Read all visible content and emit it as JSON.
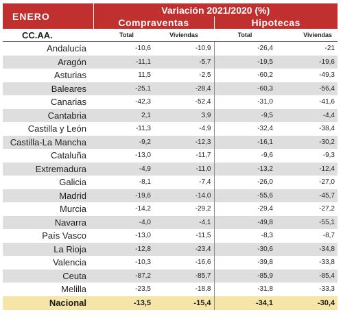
{
  "header": {
    "month": "ENERO",
    "variation": "Variación 2021/2020 (%)",
    "group_sales": "Compraventas",
    "group_mortgages": "Hipotecas",
    "region_col": "CC.AA.",
    "sub_total_sales": "Total",
    "sub_homes_sales": "Viviendas",
    "sub_total_mortgages": "Total",
    "sub_homes_mortgages": "Viviendas"
  },
  "rows": [
    {
      "name": "Andalucía",
      "sales_total": "-10,6",
      "sales_homes": "-10,9",
      "mort_total": "-26,4",
      "mort_homes": "-21"
    },
    {
      "name": "Aragón",
      "sales_total": "-11,1",
      "sales_homes": "-5,7",
      "mort_total": "-19,5",
      "mort_homes": "-19,6"
    },
    {
      "name": "Asturias",
      "sales_total": "11,5",
      "sales_homes": "-2,5",
      "mort_total": "-60,2",
      "mort_homes": "-49,3"
    },
    {
      "name": "Baleares",
      "sales_total": "-25,1",
      "sales_homes": "-28,4",
      "mort_total": "-60,3",
      "mort_homes": "-56,4"
    },
    {
      "name": "Canarias",
      "sales_total": "-42,3",
      "sales_homes": "-52,4",
      "mort_total": "-31,0",
      "mort_homes": "-41,6"
    },
    {
      "name": "Cantabria",
      "sales_total": "2,1",
      "sales_homes": "3,9",
      "mort_total": "-9,5",
      "mort_homes": "-4,4"
    },
    {
      "name": "Castilla y León",
      "sales_total": "-11,3",
      "sales_homes": "-4,9",
      "mort_total": "-32,4",
      "mort_homes": "-38,4"
    },
    {
      "name": "Castilla-La Mancha",
      "sales_total": "-9,2",
      "sales_homes": "-12,3",
      "mort_total": "-16,1",
      "mort_homes": "-30,2"
    },
    {
      "name": "Cataluña",
      "sales_total": "-13,0",
      "sales_homes": "-11,7",
      "mort_total": "-9,6",
      "mort_homes": "-9,3"
    },
    {
      "name": "Extremadura",
      "sales_total": "-4,9",
      "sales_homes": "-11,0",
      "mort_total": "-13,2",
      "mort_homes": "-12,4"
    },
    {
      "name": "Galicia",
      "sales_total": "-8,1",
      "sales_homes": "-7,4",
      "mort_total": "-26,0",
      "mort_homes": "-27,0"
    },
    {
      "name": "Madrid",
      "sales_total": "-19,6",
      "sales_homes": "-14,0",
      "mort_total": "-55,6",
      "mort_homes": "-45,7"
    },
    {
      "name": "Murcia",
      "sales_total": "-14,2",
      "sales_homes": "-29,2",
      "mort_total": "-29,4",
      "mort_homes": "-27,2"
    },
    {
      "name": "Navarra",
      "sales_total": "-4,0",
      "sales_homes": "-4,1",
      "mort_total": "-49,8",
      "mort_homes": "-55,1"
    },
    {
      "name": "País Vasco",
      "sales_total": "-13,0",
      "sales_homes": "-11,5",
      "mort_total": "-8,3",
      "mort_homes": "-8,7"
    },
    {
      "name": "La Rioja",
      "sales_total": "-12,8",
      "sales_homes": "-23,4",
      "mort_total": "-30,6",
      "mort_homes": "-34,8"
    },
    {
      "name": "Valencia",
      "sales_total": "-10,3",
      "sales_homes": "-16,6",
      "mort_total": "-39,8",
      "mort_homes": "-33,8"
    },
    {
      "name": "Ceuta",
      "sales_total": "-87,2",
      "sales_homes": "-85,7",
      "mort_total": "-85,9",
      "mort_homes": "-85,4"
    },
    {
      "name": "Melilla",
      "sales_total": "-23,5",
      "sales_homes": "-18,8",
      "mort_total": "-31,8",
      "mort_homes": "-33,3"
    }
  ],
  "national": {
    "name": "Nacional",
    "sales_total": "-13,5",
    "sales_homes": "-15,4",
    "mort_total": "-34,1",
    "mort_homes": "-30,4"
  }
}
